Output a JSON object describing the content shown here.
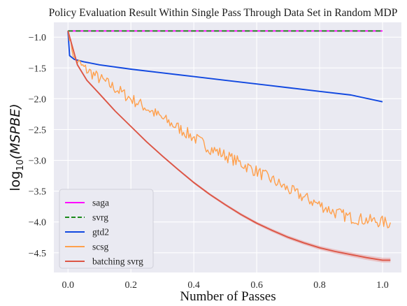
{
  "chart_data": {
    "type": "line",
    "title": "Policy Evaluation Result Within Single Pass Through Data Set in Random MDP",
    "xlabel": "Number of Passes",
    "ylabel_base": "log",
    "ylabel_sub": "10",
    "ylabel_arg": "(MSPBE)",
    "xlim": [
      -0.045,
      1.06
    ],
    "ylim": [
      -4.82,
      -0.76
    ],
    "xticks": [
      {
        "v": 0.0,
        "label": "0.0"
      },
      {
        "v": 0.2,
        "label": "0.2"
      },
      {
        "v": 0.4,
        "label": "0.4"
      },
      {
        "v": 0.6,
        "label": "0.6"
      },
      {
        "v": 0.8,
        "label": "0.8"
      },
      {
        "v": 1.0,
        "label": "1.0"
      }
    ],
    "yticks": [
      {
        "v": -1.0,
        "label": "−1.0"
      },
      {
        "v": -1.5,
        "label": "−1.5"
      },
      {
        "v": -2.0,
        "label": "−2.0"
      },
      {
        "v": -2.5,
        "label": "−2.5"
      },
      {
        "v": -3.0,
        "label": "−3.0"
      },
      {
        "v": -3.5,
        "label": "−3.5"
      },
      {
        "v": -4.0,
        "label": "−4.0"
      },
      {
        "v": -4.5,
        "label": "−4.5"
      }
    ],
    "grid": true,
    "background": "#eaeaf2",
    "legend_position": "lower-left",
    "series": [
      {
        "name": "saga",
        "color": "#ff00ff",
        "dash": "solid",
        "points": [
          [
            0.0,
            -0.9
          ],
          [
            1.0,
            -0.9
          ]
        ]
      },
      {
        "name": "svrg",
        "color": "#1a8a1a",
        "dash": "dashed",
        "points": [
          [
            0.0,
            -0.9
          ],
          [
            1.0,
            -0.9
          ]
        ]
      },
      {
        "name": "gtd2",
        "color": "#1148e0",
        "dash": "solid",
        "points": [
          [
            0.0,
            -0.9
          ],
          [
            0.005,
            -1.3
          ],
          [
            0.02,
            -1.36
          ],
          [
            0.05,
            -1.4
          ],
          [
            0.1,
            -1.45
          ],
          [
            0.2,
            -1.52
          ],
          [
            0.3,
            -1.58
          ],
          [
            0.4,
            -1.64
          ],
          [
            0.5,
            -1.7
          ],
          [
            0.6,
            -1.76
          ],
          [
            0.7,
            -1.82
          ],
          [
            0.8,
            -1.88
          ],
          [
            0.9,
            -1.94
          ],
          [
            1.0,
            -2.05
          ]
        ]
      },
      {
        "name": "scsg",
        "color": "#ffa04d",
        "dash": "solid",
        "noisy": true,
        "noise_amplitude": 0.1,
        "x_end": 1.025,
        "points": [
          [
            0.0,
            -0.9
          ],
          [
            0.02,
            -1.35
          ],
          [
            0.05,
            -1.5
          ],
          [
            0.1,
            -1.67
          ],
          [
            0.15,
            -1.83
          ],
          [
            0.2,
            -2.0
          ],
          [
            0.25,
            -2.15
          ],
          [
            0.3,
            -2.32
          ],
          [
            0.35,
            -2.47
          ],
          [
            0.4,
            -2.63
          ],
          [
            0.45,
            -2.8
          ],
          [
            0.5,
            -2.92
          ],
          [
            0.55,
            -3.05
          ],
          [
            0.6,
            -3.18
          ],
          [
            0.65,
            -3.32
          ],
          [
            0.7,
            -3.47
          ],
          [
            0.75,
            -3.6
          ],
          [
            0.8,
            -3.72
          ],
          [
            0.85,
            -3.85
          ],
          [
            0.9,
            -3.93
          ],
          [
            0.95,
            -3.97
          ],
          [
            1.0,
            -4.0
          ],
          [
            1.025,
            -4.03
          ]
        ]
      },
      {
        "name": "batching svrg",
        "color": "#dc5545",
        "dash": "solid",
        "band": true,
        "band_color": "#e8a0a0",
        "points": [
          [
            0.0,
            -0.9
          ],
          [
            0.03,
            -1.45
          ],
          [
            0.06,
            -1.7
          ],
          [
            0.1,
            -1.92
          ],
          [
            0.15,
            -2.2
          ],
          [
            0.2,
            -2.45
          ],
          [
            0.25,
            -2.7
          ],
          [
            0.3,
            -2.93
          ],
          [
            0.35,
            -3.15
          ],
          [
            0.4,
            -3.36
          ],
          [
            0.45,
            -3.55
          ],
          [
            0.5,
            -3.72
          ],
          [
            0.55,
            -3.88
          ],
          [
            0.6,
            -4.02
          ],
          [
            0.65,
            -4.14
          ],
          [
            0.7,
            -4.25
          ],
          [
            0.75,
            -4.34
          ],
          [
            0.8,
            -4.42
          ],
          [
            0.85,
            -4.48
          ],
          [
            0.9,
            -4.53
          ],
          [
            0.95,
            -4.58
          ],
          [
            1.0,
            -4.62
          ],
          [
            1.025,
            -4.62
          ]
        ]
      }
    ]
  }
}
